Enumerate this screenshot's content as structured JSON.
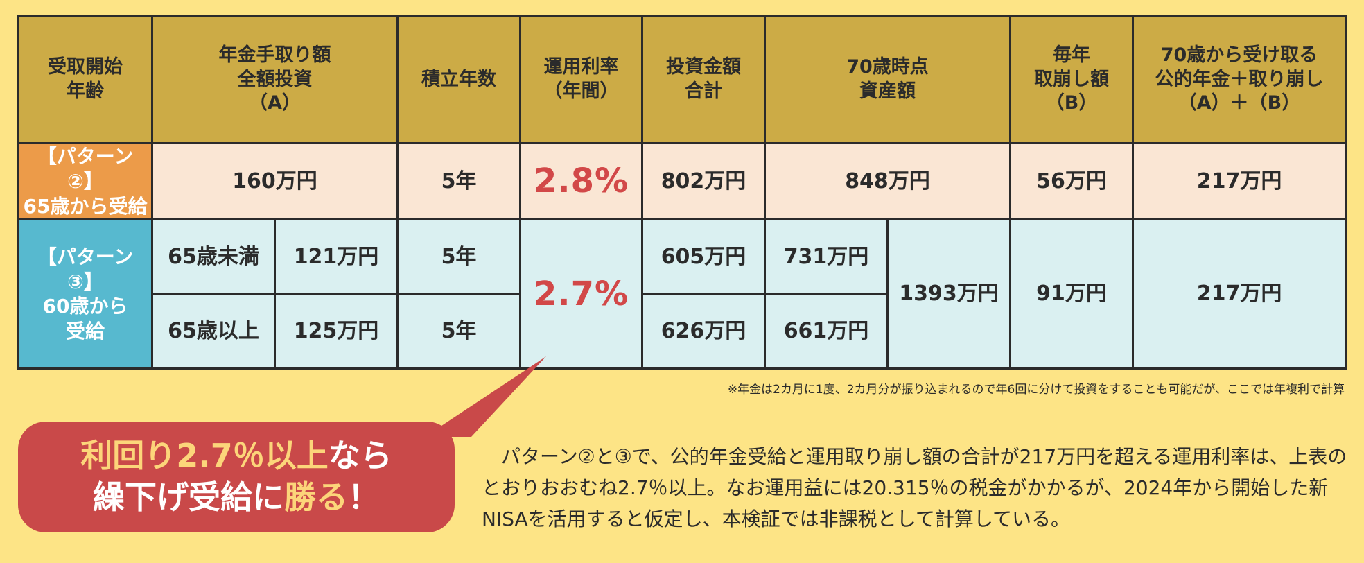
{
  "header": {
    "col1": "受取開始\n年齢",
    "col2": "年金手取り額\n全額投資\n（A）",
    "col3": "積立年数",
    "col4": "運用利率\n（年間）",
    "col5": "投資金額\n合計",
    "col6": "70歳時点\n資産額",
    "col7": "毎年\n取崩し額\n（B）",
    "col8": "70歳から受け取る\n公的年金＋取り崩し\n（A）＋（B）"
  },
  "pattern2": {
    "label": "【パターン②】\n65歳から受給",
    "amount": "160万円",
    "years": "5年",
    "rate": "2.8%",
    "invest_total": "802万円",
    "assets_70": "848万円",
    "withdraw": "56万円",
    "total": "217万円"
  },
  "pattern3": {
    "label": "【パターン③】\n60歳から\n受給",
    "rows": [
      {
        "age": "65歳未満",
        "amount": "121万円",
        "years": "5年",
        "invest_total": "605万円",
        "assets": "731万円"
      },
      {
        "age": "65歳以上",
        "amount": "125万円",
        "years": "5年",
        "invest_total": "626万円",
        "assets": "661万円"
      }
    ],
    "rate": "2.7%",
    "assets_70": "1393万円",
    "withdraw": "91万円",
    "total": "217万円"
  },
  "footnote": "※年金は2カ月に1度、2カ月分が振り込まれるので年6回に分けて投資をすることも可能だが、ここでは年複利で計算",
  "callout": {
    "line1_hl1": "利回り2.7％以上",
    "line1_rest": "なら",
    "line2_a": "繰下げ受給に",
    "line2_hl": "勝る",
    "line2_b": "！"
  },
  "body": "　パターン②と③で、公的年金受給と運用取り崩し額の合計が217万円を超える運用利率は、上表のとおりおおむね2.7％以上。なお運用益には20.315％の税金がかかるが、2024年から開始した新NISAを活用すると仮定し、本検証では非課税として計算している。",
  "colors": {
    "background": "#fde486",
    "header": "#ccab46",
    "pattern2_label": "#ec9b49",
    "pattern2_row": "#fae6d4",
    "pattern3_label": "#57b9cf",
    "pattern3_row": "#daf0f1",
    "rate": "#d24848",
    "callout": "#c94949",
    "callout_highlight": "#fcd57a"
  }
}
